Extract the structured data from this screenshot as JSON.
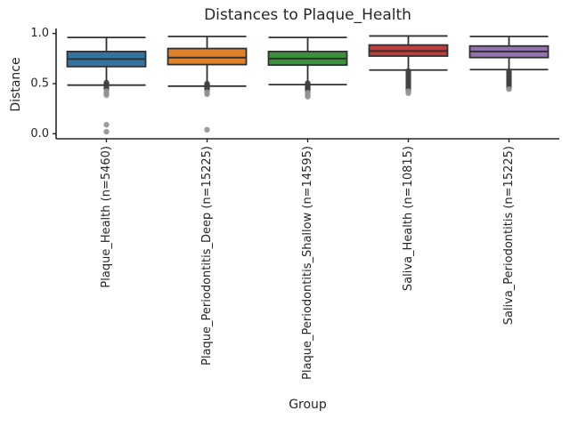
{
  "chart_data": {
    "type": "box",
    "title": "Distances to Plaque_Health",
    "xlabel": "Group",
    "ylabel": "Distance",
    "ylim": [
      -0.05,
      1.05
    ],
    "ytick_values": [
      0.0,
      0.5,
      1.0
    ],
    "ytick_labels": [
      "0.0",
      "0.5",
      "1.0"
    ],
    "grid": false,
    "legend": "none",
    "edge_color": "#303030",
    "spine_color": "#262626",
    "text_color": "#262626",
    "outlier_dark_color": "#3f3f3f",
    "outlier_gray_color": "#919191",
    "groups": [
      {
        "label": "Plaque_Health (n=5460)",
        "color": "#3274A1",
        "whisker_low": 0.485,
        "q1": 0.67,
        "median": 0.745,
        "q3": 0.82,
        "whisker_high": 0.96,
        "outliers_dark": [
          0.51,
          0.495,
          0.48,
          0.465,
          0.45
        ],
        "outliers_gray": [
          0.425,
          0.405,
          0.385,
          0.09,
          0.02
        ]
      },
      {
        "label": "Plaque_Periodontitis_Deep (n=15225)",
        "color": "#E1812C",
        "whisker_low": 0.475,
        "q1": 0.69,
        "median": 0.76,
        "q3": 0.85,
        "whisker_high": 0.97,
        "outliers_dark": [
          0.5,
          0.485,
          0.47,
          0.455,
          0.44
        ],
        "outliers_gray": [
          0.415,
          0.395,
          0.04
        ]
      },
      {
        "label": "Plaque_Periodontitis_Shallow (n=14595)",
        "color": "#3A923A",
        "whisker_low": 0.49,
        "q1": 0.685,
        "median": 0.75,
        "q3": 0.82,
        "whisker_high": 0.96,
        "outliers_dark": [
          0.505,
          0.49,
          0.475,
          0.46,
          0.445,
          0.43
        ],
        "outliers_gray": [
          0.41,
          0.39,
          0.37
        ]
      },
      {
        "label": "Saliva_Health (n=10815)",
        "color": "#C03D3E",
        "whisker_low": 0.635,
        "q1": 0.775,
        "median": 0.825,
        "q3": 0.885,
        "whisker_high": 0.975,
        "outliers_dark": [
          0.625,
          0.605,
          0.585,
          0.565,
          0.545,
          0.525,
          0.505,
          0.485,
          0.465,
          0.445
        ],
        "outliers_gray": [
          0.425,
          0.405
        ]
      },
      {
        "label": "Saliva_Periodontitis (n=15225)",
        "color": "#9372B2",
        "whisker_low": 0.64,
        "q1": 0.76,
        "median": 0.82,
        "q3": 0.875,
        "whisker_high": 0.97,
        "outliers_dark": [
          0.625,
          0.605,
          0.585,
          0.565,
          0.545,
          0.525,
          0.505,
          0.485,
          0.465
        ],
        "outliers_gray": [
          0.445
        ]
      }
    ]
  }
}
